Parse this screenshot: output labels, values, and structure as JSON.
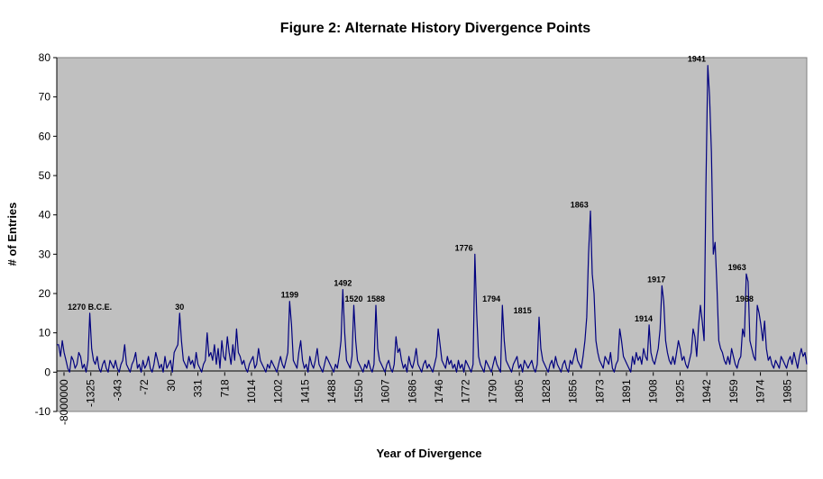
{
  "chart_data": {
    "type": "line",
    "title": "Figure 2:  Alternate History Divergence Points",
    "xlabel": "Year of Divergence",
    "ylabel": "# of Entries",
    "ylim": [
      -10,
      80
    ],
    "yticks": [
      -10,
      0,
      10,
      20,
      30,
      40,
      50,
      60,
      70,
      80
    ],
    "grid": false,
    "legend": "none",
    "colors": {
      "line": "#00007f",
      "plot_bg": "#c0c0c0",
      "axis": "#000000"
    },
    "x_tick_labels": [
      "-8000000",
      "-1325",
      "-343",
      "-72",
      "30",
      "331",
      "718",
      "1014",
      "1202",
      "1415",
      "1488",
      "1550",
      "1607",
      "1686",
      "1746",
      "1772",
      "1790",
      "1805",
      "1828",
      "1856",
      "1873",
      "1891",
      "1908",
      "1925",
      "1942",
      "1959",
      "1974",
      "1985"
    ],
    "series": [
      {
        "values": [
          7,
          7,
          4,
          8,
          5,
          3,
          1,
          0,
          4,
          3,
          1,
          2,
          5,
          4,
          1,
          2,
          0,
          3,
          15,
          6,
          3,
          2,
          4,
          1,
          0,
          2,
          3,
          1,
          0,
          3,
          2,
          1,
          3,
          1,
          0,
          2,
          3,
          7,
          2,
          1,
          0,
          2,
          3,
          5,
          1,
          2,
          0,
          3,
          1,
          2,
          4,
          1,
          0,
          2,
          5,
          3,
          1,
          2,
          0,
          4,
          1,
          2,
          3,
          0,
          5,
          6,
          7,
          15,
          8,
          3,
          2,
          1,
          4,
          2,
          3,
          1,
          5,
          2,
          1,
          0,
          2,
          3,
          10,
          4,
          5,
          3,
          7,
          2,
          6,
          1,
          8,
          4,
          3,
          9,
          5,
          2,
          7,
          3,
          11,
          5,
          4,
          2,
          3,
          1,
          0,
          2,
          3,
          4,
          1,
          2,
          6,
          3,
          2,
          1,
          0,
          2,
          1,
          3,
          2,
          1,
          0,
          2,
          4,
          2,
          1,
          3,
          5,
          18,
          12,
          3,
          2,
          1,
          5,
          8,
          3,
          1,
          2,
          0,
          4,
          2,
          1,
          3,
          6,
          2,
          1,
          0,
          2,
          4,
          3,
          2,
          1,
          0,
          2,
          1,
          4,
          8,
          21,
          10,
          3,
          2,
          1,
          4,
          17,
          8,
          3,
          2,
          1,
          0,
          2,
          1,
          3,
          1,
          0,
          2,
          17,
          6,
          3,
          2,
          1,
          0,
          2,
          3,
          1,
          0,
          2,
          9,
          5,
          6,
          3,
          1,
          2,
          0,
          4,
          2,
          1,
          3,
          6,
          2,
          1,
          0,
          2,
          3,
          1,
          2,
          1,
          0,
          2,
          4,
          11,
          7,
          3,
          2,
          1,
          4,
          2,
          3,
          1,
          2,
          0,
          3,
          1,
          2,
          0,
          3,
          2,
          1,
          0,
          2,
          30,
          15,
          4,
          2,
          1,
          0,
          3,
          2,
          1,
          0,
          2,
          4,
          2,
          1,
          0,
          17,
          8,
          3,
          2,
          1,
          0,
          2,
          3,
          4,
          1,
          2,
          0,
          3,
          2,
          1,
          2,
          3,
          1,
          0,
          2,
          14,
          6,
          3,
          2,
          1,
          0,
          2,
          3,
          1,
          4,
          2,
          1,
          0,
          2,
          3,
          1,
          0,
          3,
          2,
          4,
          6,
          3,
          2,
          1,
          4,
          8,
          14,
          30,
          41,
          25,
          20,
          8,
          5,
          3,
          2,
          1,
          4,
          3,
          2,
          5,
          1,
          0,
          2,
          3,
          11,
          8,
          4,
          3,
          2,
          1,
          0,
          4,
          2,
          5,
          3,
          4,
          2,
          6,
          4,
          3,
          12,
          5,
          3,
          2,
          4,
          6,
          11,
          22,
          18,
          8,
          5,
          3,
          2,
          4,
          2,
          5,
          8,
          6,
          3,
          4,
          2,
          1,
          3,
          5,
          11,
          9,
          4,
          12,
          17,
          13,
          8,
          47,
          78,
          70,
          56,
          30,
          33,
          22,
          8,
          6,
          5,
          3,
          2,
          4,
          2,
          6,
          4,
          2,
          1,
          3,
          4,
          11,
          9,
          25,
          23,
          8,
          6,
          4,
          3,
          17,
          15,
          12,
          8,
          13,
          6,
          3,
          4,
          2,
          1,
          3,
          2,
          1,
          4,
          3,
          2,
          1,
          3,
          4,
          2,
          5,
          3,
          1,
          4,
          6,
          4,
          5,
          2
        ]
      }
    ],
    "annotations": [
      {
        "text": "1270 B.C.E.",
        "index": 18,
        "y": 15
      },
      {
        "text": "30",
        "index": 67,
        "y": 15
      },
      {
        "text": "1199",
        "index": 127,
        "y": 18
      },
      {
        "text": "1492",
        "index": 156,
        "y": 21
      },
      {
        "text": "1520",
        "index": 162,
        "y": 17
      },
      {
        "text": "1588",
        "index": 174,
        "y": 17
      },
      {
        "text": "1776",
        "index": 222,
        "y": 30
      },
      {
        "text": "1794",
        "index": 237,
        "y": 17
      },
      {
        "text": "1815",
        "index": 254,
        "y": 14
      },
      {
        "text": "1863",
        "index": 285,
        "y": 41
      },
      {
        "text": "1914",
        "index": 320,
        "y": 12
      },
      {
        "text": "1917",
        "index": 327,
        "y": 22
      },
      {
        "text": "1941",
        "index": 349,
        "y": 78
      },
      {
        "text": "1963",
        "index": 371,
        "y": 25
      },
      {
        "text": "1968",
        "index": 375,
        "y": 17
      }
    ]
  }
}
